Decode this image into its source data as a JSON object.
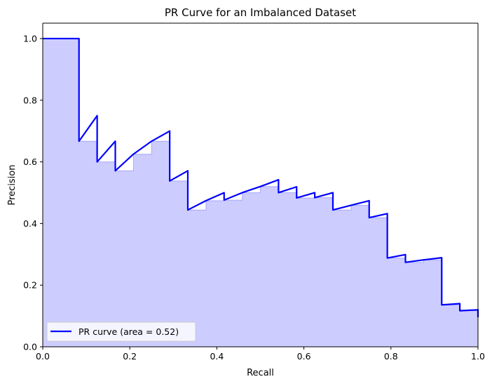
{
  "chart_data": {
    "type": "line",
    "title": "PR Curve for an Imbalanced Dataset",
    "xlabel": "Recall",
    "ylabel": "Precision",
    "xlim": [
      0.0,
      1.0
    ],
    "ylim": [
      0.0,
      1.05
    ],
    "xticks": [
      0.0,
      0.2,
      0.4,
      0.6,
      0.8,
      1.0
    ],
    "xtick_labels": [
      "0.0",
      "0.2",
      "0.4",
      "0.6",
      "0.8",
      "1.0"
    ],
    "yticks": [
      0.0,
      0.2,
      0.4,
      0.6,
      0.8,
      1.0
    ],
    "ytick_labels": [
      "0.0",
      "0.2",
      "0.4",
      "0.6",
      "0.8",
      "1.0"
    ],
    "series": [
      {
        "name": "PR curve (area = 0.52)",
        "color": "#0000ff",
        "recall": [
          0.0,
          0.0833,
          0.0833,
          0.125,
          0.125,
          0.1667,
          0.1667,
          0.2083,
          0.25,
          0.2917,
          0.2917,
          0.3333,
          0.3333,
          0.375,
          0.4167,
          0.4167,
          0.4583,
          0.5,
          0.5417,
          0.5417,
          0.5833,
          0.5833,
          0.625,
          0.625,
          0.6667,
          0.6667,
          0.7083,
          0.75,
          0.75,
          0.7917,
          0.7917,
          0.8333,
          0.8333,
          0.875,
          0.9167,
          0.9167,
          0.9583,
          0.9583,
          1.0,
          1.0
        ],
        "precision": [
          1.0,
          1.0,
          0.667,
          0.75,
          0.6,
          0.667,
          0.571,
          0.625,
          0.667,
          0.7,
          0.538,
          0.571,
          0.444,
          0.474,
          0.5,
          0.476,
          0.5,
          0.52,
          0.542,
          0.5,
          0.519,
          0.483,
          0.5,
          0.484,
          0.5,
          0.444,
          0.459,
          0.474,
          0.419,
          0.432,
          0.288,
          0.299,
          0.274,
          0.282,
          0.289,
          0.136,
          0.14,
          0.117,
          0.12,
          0.096
        ]
      }
    ],
    "fill": {
      "color": "#0000ff",
      "opacity": 0.2,
      "step": "post"
    },
    "legend": {
      "label": "PR curve (area = 0.52)",
      "placement": "lower-left"
    },
    "grid": false
  }
}
